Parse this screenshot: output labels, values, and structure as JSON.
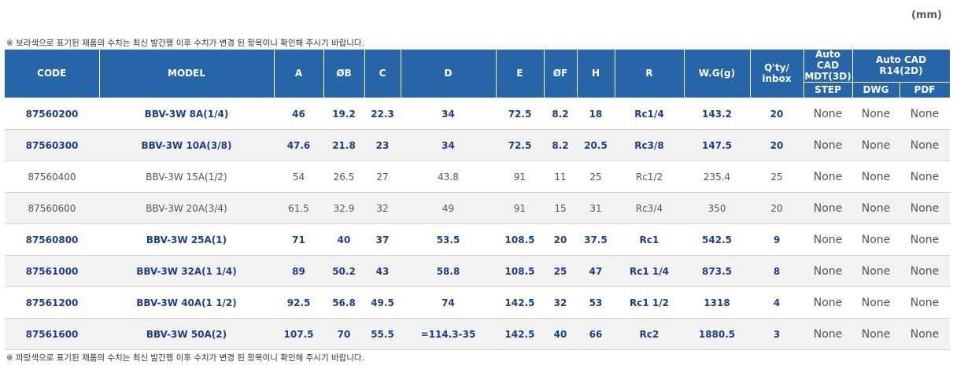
{
  "unit": "(mm)",
  "note_top": "※ 보라색으로 표기된 제품의 수치는 최신 발간행 이후 수치가 변경 된 항목이니 확인해 주시기 바랍니다.",
  "note_bottom": "※ 파랑색으로 표기된 제품의 수치는 최신 발간행 이후 수치가 변경 된 항목이니 확인해 주시기 바랍니다.",
  "headers": {
    "code": "CODE",
    "model": "MODEL",
    "a": "A",
    "b": "ØB",
    "c": "C",
    "d": "D",
    "e": "E",
    "f": "ØF",
    "h": "H",
    "r": "R",
    "wg": "W.G(g)",
    "qty_line1": "Q'ty/",
    "qty_line2": "inbox",
    "cad3d_line1": "Auto CAD",
    "cad3d_line2": "MDT(3D)",
    "cad2d": "Auto CAD R14(2D)",
    "step": "STEP",
    "dwg": "DWG",
    "pdf": "PDF"
  },
  "rows": [
    {
      "code": "87560200",
      "model": "BBV-3W 8A(1/4)",
      "a": "46",
      "b": "19.2",
      "c": "22.3",
      "d": "34",
      "e": "72.5",
      "f": "8.2",
      "h": "18",
      "r": "Rc1/4",
      "wg": "143.2",
      "qty": "20",
      "step": "None",
      "dwg": "None",
      "pdf": "None"
    },
    {
      "code": "87560300",
      "model": "BBV-3W 10A(3/8)",
      "a": "47.6",
      "b": "21.8",
      "c": "23",
      "d": "34",
      "e": "72.5",
      "f": "8.2",
      "h": "20.5",
      "r": "Rc3/8",
      "wg": "147.5",
      "qty": "20",
      "step": "None",
      "dwg": "None",
      "pdf": "None"
    },
    {
      "code": "87560400",
      "model": "BBV-3W 15A(1/2)",
      "a": "54",
      "b": "26.5",
      "c": "27",
      "d": "43.8",
      "e": "91",
      "f": "11",
      "h": "25",
      "r": "Rc1/2",
      "wg": "235.4",
      "qty": "25",
      "step": "None",
      "dwg": "None",
      "pdf": "None"
    },
    {
      "code": "87560600",
      "model": "BBV-3W 20A(3/4)",
      "a": "61.5",
      "b": "32.9",
      "c": "32",
      "d": "49",
      "e": "91",
      "f": "15",
      "h": "31",
      "r": "Rc3/4",
      "wg": "350",
      "qty": "20",
      "step": "None",
      "dwg": "None",
      "pdf": "None"
    },
    {
      "code": "87560800",
      "model": "BBV-3W 25A(1)",
      "a": "71",
      "b": "40",
      "c": "37",
      "d": "53.5",
      "e": "108.5",
      "f": "20",
      "h": "37.5",
      "r": "Rc1",
      "wg": "542.5",
      "qty": "9",
      "step": "None",
      "dwg": "None",
      "pdf": "None"
    },
    {
      "code": "87561000",
      "model": "BBV-3W 32A(1 1/4)",
      "a": "89",
      "b": "50.2",
      "c": "43",
      "d": "58.8",
      "e": "108.5",
      "f": "25",
      "h": "47",
      "r": "Rc1 1/4",
      "wg": "873.5",
      "qty": "8",
      "step": "None",
      "dwg": "None",
      "pdf": "None"
    },
    {
      "code": "87561200",
      "model": "BBV-3W 40A(1 1/2)",
      "a": "92.5",
      "b": "56.8",
      "c": "49.5",
      "d": "74",
      "e": "142.5",
      "f": "32",
      "h": "53",
      "r": "Rc1 1/2",
      "wg": "1318",
      "qty": "4",
      "step": "None",
      "dwg": "None",
      "pdf": "None"
    },
    {
      "code": "87561600",
      "model": "BBV-3W 50A(2)",
      "a": "107.5",
      "b": "70",
      "c": "55.5",
      "d": "=114.3-35",
      "e": "142.5",
      "f": "40",
      "h": "66",
      "r": "Rc2",
      "wg": "1880.5",
      "qty": "3",
      "step": "None",
      "dwg": "None",
      "pdf": "None"
    }
  ],
  "row_styles": [
    "emph",
    "emph",
    "norm",
    "norm",
    "emph",
    "emph",
    "emph",
    "emph"
  ]
}
